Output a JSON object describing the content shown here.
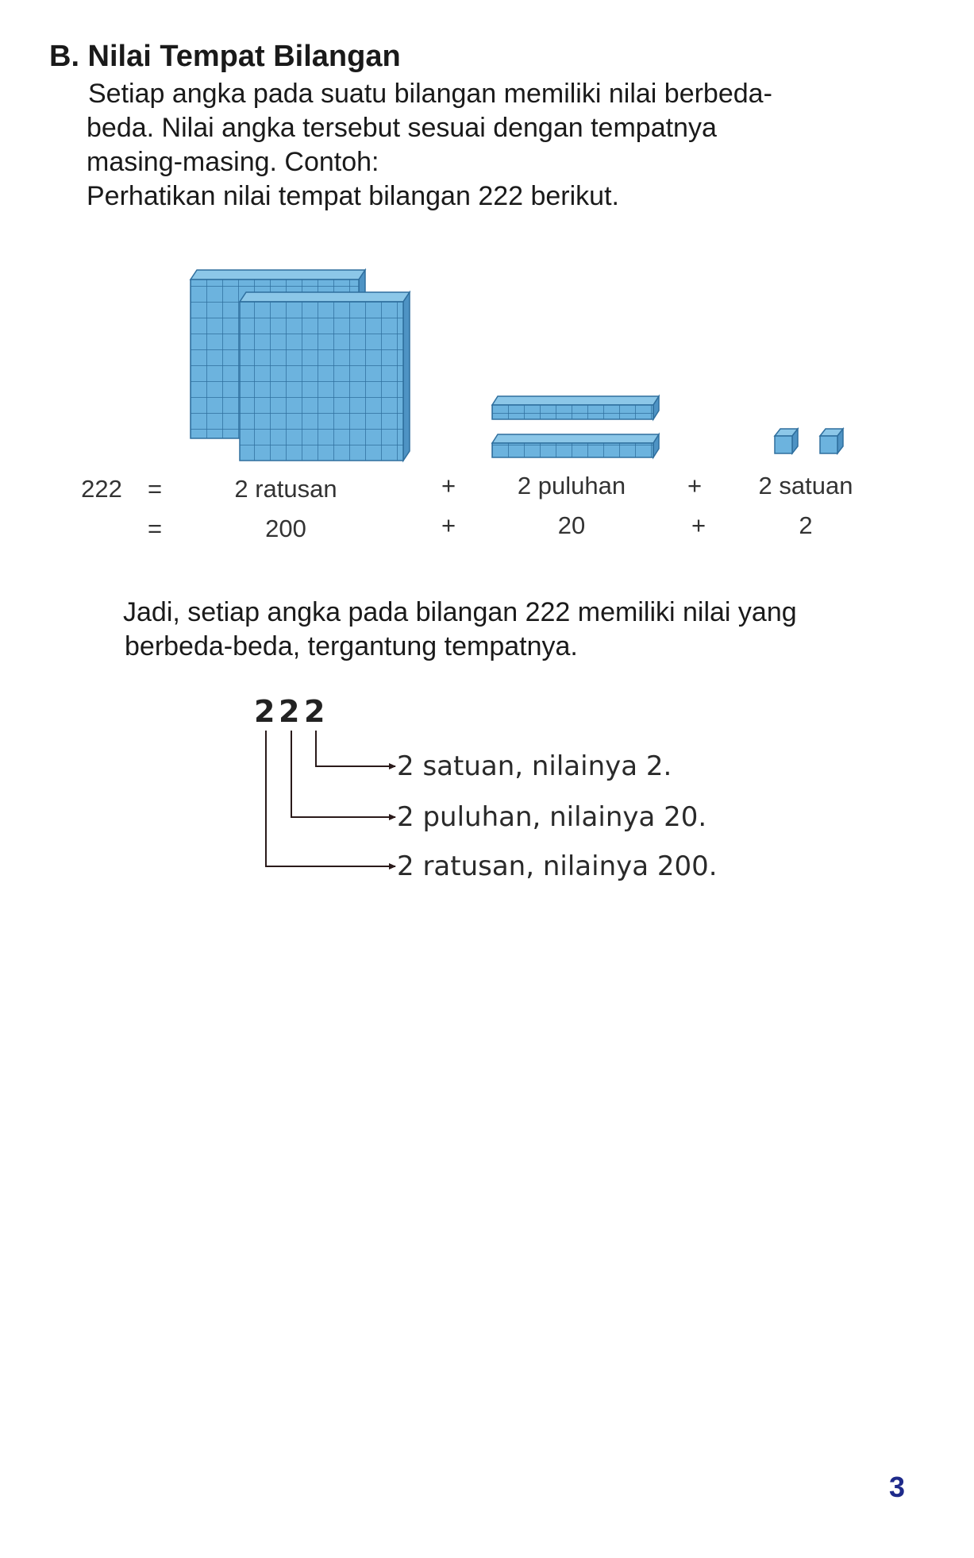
{
  "section": {
    "title": "B. Nilai Tempat Bilangan",
    "intro_lines": [
      "Setiap angka pada suatu bilangan memiliki nilai berbeda-",
      "beda. Nilai angka tersebut sesuai dengan tempatnya",
      "masing-masing. Contoh:",
      "Perhatikan nilai tempat bilangan 222 berikut."
    ]
  },
  "equation": {
    "number": "222",
    "equals": "=",
    "plus": "+",
    "row1": [
      "2 ratusan",
      "2 puluhan",
      "2 satuan"
    ],
    "row2": [
      "200",
      "20",
      "2"
    ]
  },
  "conclusion_lines": [
    "Jadi, setiap angka pada bilangan 222 memiliki nilai yang",
    "berbeda-beda, tergantung tempatnya."
  ],
  "place_value_diagram": {
    "digits": [
      "2",
      "2",
      "2"
    ],
    "labels": [
      "2 satuan, nilainya 2.",
      "2 puluhan, nilainya 20.",
      "2 ratusan, nilainya 200."
    ]
  },
  "colors": {
    "block_fill": "#6cb3de",
    "block_line": "#2f6f9e",
    "page_number": "#1e2a8a"
  },
  "page_number": "3"
}
